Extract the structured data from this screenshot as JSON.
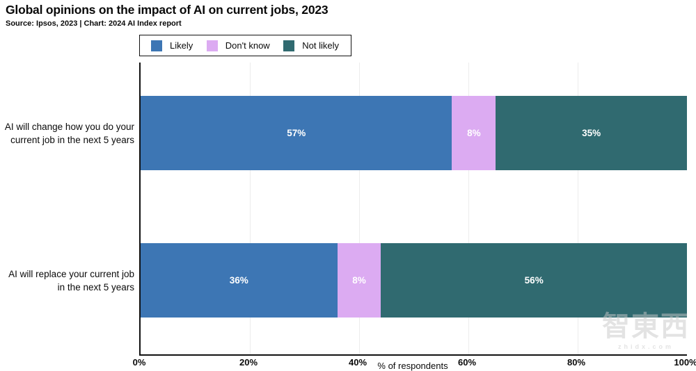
{
  "title": "Global opinions on the impact of AI on current jobs, 2023",
  "subtitle": "Source: Ipsos, 2023 | Chart: 2024 AI Index report",
  "legend": {
    "position": "top",
    "items": [
      {
        "label": "Likely",
        "color": "#3d76b4"
      },
      {
        "label": "Don't know",
        "color": "#dcabf2"
      },
      {
        "label": "Not likely",
        "color": "#306a70"
      }
    ]
  },
  "chart_data": {
    "type": "bar",
    "orientation": "horizontal",
    "stacked": true,
    "title": "Global opinions on the impact of AI on current jobs, 2023",
    "categories": [
      "AI will change how you do your current job in the next 5 years",
      "AI will replace your current job in the next 5 years"
    ],
    "category_lines": [
      [
        "AI will change how you do your",
        "current job in the next 5 years"
      ],
      [
        "AI will replace your current job",
        "in the next 5 years"
      ]
    ],
    "series": [
      {
        "name": "Likely",
        "color": "#3d76b4",
        "values": [
          57,
          36
        ]
      },
      {
        "name": "Don't know",
        "color": "#dcabf2",
        "values": [
          8,
          8
        ]
      },
      {
        "name": "Not likely",
        "color": "#306a70",
        "values": [
          35,
          56
        ]
      }
    ],
    "value_suffix": "%",
    "xlabel": "% of respondents",
    "x_ticks": [
      "0%",
      "20%",
      "40%",
      "60%",
      "80%",
      "100%"
    ],
    "xlim": [
      0,
      100
    ],
    "grid": "vertical-light"
  },
  "colors": {
    "axis": "#111111",
    "gridline": "#ececec",
    "bar_label_text": "#ffffff"
  },
  "watermark": {
    "text": "智東西",
    "subtext": "zhidx.com"
  }
}
